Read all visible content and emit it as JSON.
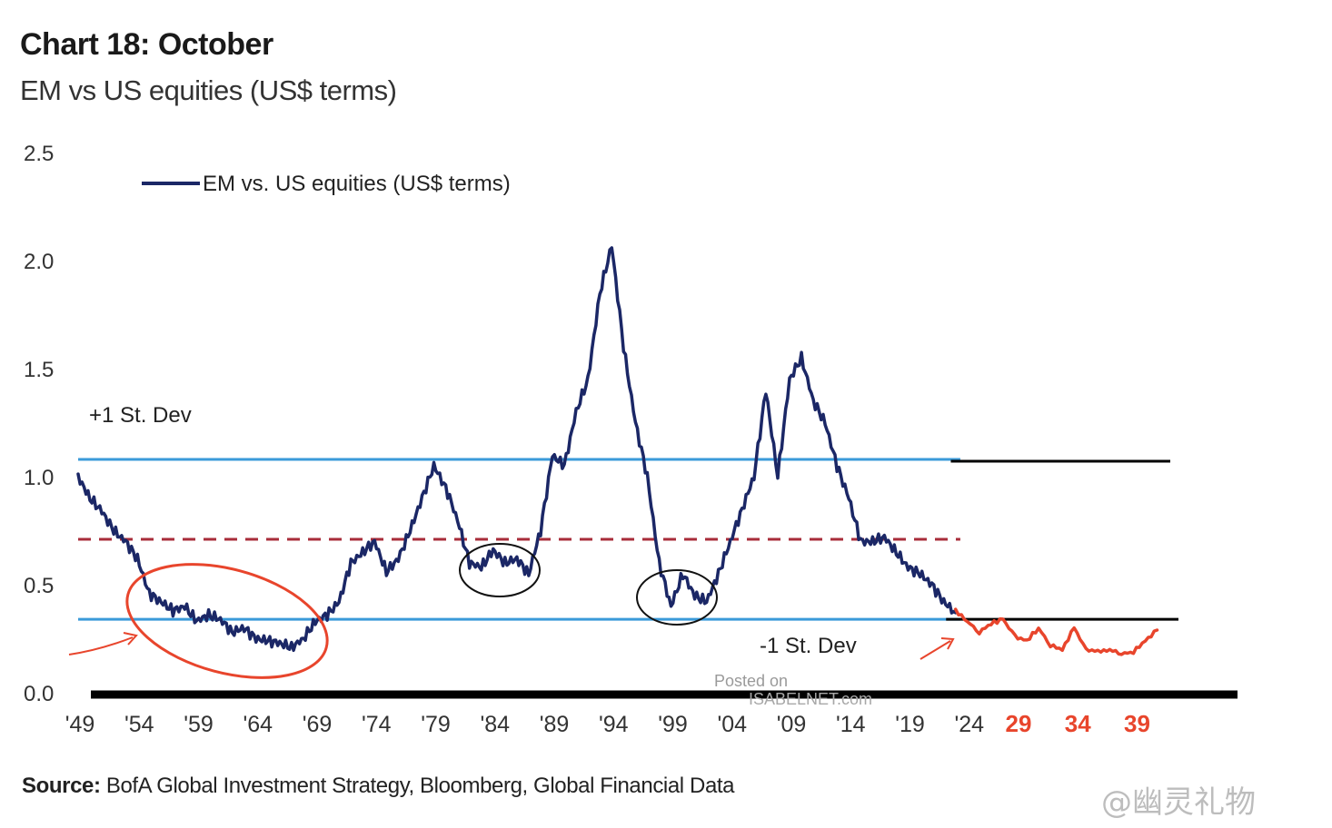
{
  "header": {
    "title": "Chart 18: October",
    "subtitle": "EM vs US equities (US$ terms)"
  },
  "footer": {
    "source_label": "Source:",
    "source_text": "BofA Global Investment Strategy, Bloomberg, Global Financial Data",
    "watermark": "@幽灵礼物",
    "posted_on": "Posted on",
    "posted_site": "ISABELNET.com"
  },
  "colors": {
    "series": "#1b2766",
    "band": "#3a9ad9",
    "mean": "#a82c3a",
    "projection": "#e8452c",
    "circle_red": "#e8452c",
    "circle_black": "#111111",
    "extension": "#000000"
  },
  "chart_data": {
    "type": "line",
    "title": "",
    "xlabel": "",
    "ylabel": "",
    "ylim": [
      0,
      2.5
    ],
    "xlim": [
      1949,
      2044
    ],
    "y_ticks": [
      "0.0",
      "0.5",
      "1.0",
      "1.5",
      "2.0",
      "2.5"
    ],
    "x_ticks": [
      {
        "x": 1949,
        "label": "'49"
      },
      {
        "x": 1954,
        "label": "'54"
      },
      {
        "x": 1959,
        "label": "'59"
      },
      {
        "x": 1964,
        "label": "'64"
      },
      {
        "x": 1969,
        "label": "'69"
      },
      {
        "x": 1974,
        "label": "'74"
      },
      {
        "x": 1979,
        "label": "'79"
      },
      {
        "x": 1984,
        "label": "'84"
      },
      {
        "x": 1989,
        "label": "'89"
      },
      {
        "x": 1994,
        "label": "'94"
      },
      {
        "x": 1999,
        "label": "'99"
      },
      {
        "x": 2004,
        "label": "'04"
      },
      {
        "x": 2009,
        "label": "'09"
      },
      {
        "x": 2014,
        "label": "'14"
      },
      {
        "x": 2019,
        "label": "'19"
      },
      {
        "x": 2024,
        "label": "'24"
      }
    ],
    "projection_ticks": [
      {
        "x": 2029,
        "label": "29"
      },
      {
        "x": 2034,
        "label": "34"
      },
      {
        "x": 2039,
        "label": "39"
      }
    ],
    "legend": {
      "label": "EM vs. US equities (US$ terms)",
      "position": "top-left"
    },
    "reference_lines": [
      {
        "name": "+1 St. Dev",
        "value": 1.08,
        "style": "solid"
      },
      {
        "name": "mean",
        "value": 0.71,
        "style": "dashed"
      },
      {
        "name": "-1 St. Dev",
        "value": 0.34,
        "style": "solid"
      }
    ],
    "annotations": [
      {
        "text": "+1 St. Dev",
        "x": 1950,
        "y": 1.26
      },
      {
        "text": "-1 St. Dev",
        "x": 2007,
        "y": 0.2
      }
    ],
    "series": [
      {
        "name": "EM vs. US equities (US$ terms)",
        "points": [
          [
            1949,
            1.0
          ],
          [
            1950,
            0.9
          ],
          [
            1951,
            0.84
          ],
          [
            1952,
            0.75
          ],
          [
            1953,
            0.7
          ],
          [
            1954,
            0.62
          ],
          [
            1955,
            0.46
          ],
          [
            1956,
            0.42
          ],
          [
            1957,
            0.38
          ],
          [
            1958,
            0.4
          ],
          [
            1959,
            0.33
          ],
          [
            1960,
            0.36
          ],
          [
            1961,
            0.34
          ],
          [
            1962,
            0.28
          ],
          [
            1963,
            0.3
          ],
          [
            1964,
            0.25
          ],
          [
            1965,
            0.24
          ],
          [
            1966,
            0.23
          ],
          [
            1967,
            0.21
          ],
          [
            1968,
            0.25
          ],
          [
            1969,
            0.33
          ],
          [
            1970,
            0.36
          ],
          [
            1971,
            0.42
          ],
          [
            1972,
            0.6
          ],
          [
            1973,
            0.65
          ],
          [
            1974,
            0.7
          ],
          [
            1975,
            0.56
          ],
          [
            1976,
            0.62
          ],
          [
            1977,
            0.75
          ],
          [
            1978,
            0.9
          ],
          [
            1979,
            1.05
          ],
          [
            1980,
            0.95
          ],
          [
            1981,
            0.8
          ],
          [
            1982,
            0.6
          ],
          [
            1983,
            0.58
          ],
          [
            1984,
            0.66
          ],
          [
            1985,
            0.6
          ],
          [
            1986,
            0.62
          ],
          [
            1987,
            0.55
          ],
          [
            1988,
            0.75
          ],
          [
            1989,
            1.1
          ],
          [
            1990,
            1.05
          ],
          [
            1991,
            1.3
          ],
          [
            1992,
            1.45
          ],
          [
            1993,
            1.85
          ],
          [
            1994,
            2.07
          ],
          [
            1995,
            1.6
          ],
          [
            1996,
            1.25
          ],
          [
            1997,
            1.0
          ],
          [
            1998,
            0.6
          ],
          [
            1999,
            0.4
          ],
          [
            2000,
            0.55
          ],
          [
            2001,
            0.45
          ],
          [
            2002,
            0.42
          ],
          [
            2003,
            0.55
          ],
          [
            2004,
            0.7
          ],
          [
            2005,
            0.85
          ],
          [
            2006,
            1.0
          ],
          [
            2007,
            1.4
          ],
          [
            2008,
            1.0
          ],
          [
            2009,
            1.45
          ],
          [
            2010,
            1.55
          ],
          [
            2011,
            1.35
          ],
          [
            2012,
            1.25
          ],
          [
            2013,
            1.05
          ],
          [
            2014,
            0.9
          ],
          [
            2015,
            0.7
          ],
          [
            2016,
            0.7
          ],
          [
            2017,
            0.72
          ],
          [
            2018,
            0.65
          ],
          [
            2019,
            0.58
          ],
          [
            2020,
            0.55
          ],
          [
            2021,
            0.5
          ],
          [
            2022,
            0.42
          ],
          [
            2023,
            0.37
          ]
        ]
      },
      {
        "name": "",
        "style": "projection",
        "points": [
          [
            2023,
            0.38
          ],
          [
            2024,
            0.33
          ],
          [
            2025,
            0.28
          ],
          [
            2026,
            0.32
          ],
          [
            2027,
            0.34
          ],
          [
            2028,
            0.26
          ],
          [
            2029,
            0.24
          ],
          [
            2030,
            0.3
          ],
          [
            2031,
            0.22
          ],
          [
            2032,
            0.2
          ],
          [
            2033,
            0.3
          ],
          [
            2034,
            0.2
          ],
          [
            2035,
            0.19
          ],
          [
            2036,
            0.2
          ],
          [
            2037,
            0.18
          ],
          [
            2038,
            0.19
          ],
          [
            2039,
            0.24
          ],
          [
            2040,
            0.29
          ]
        ]
      }
    ]
  }
}
